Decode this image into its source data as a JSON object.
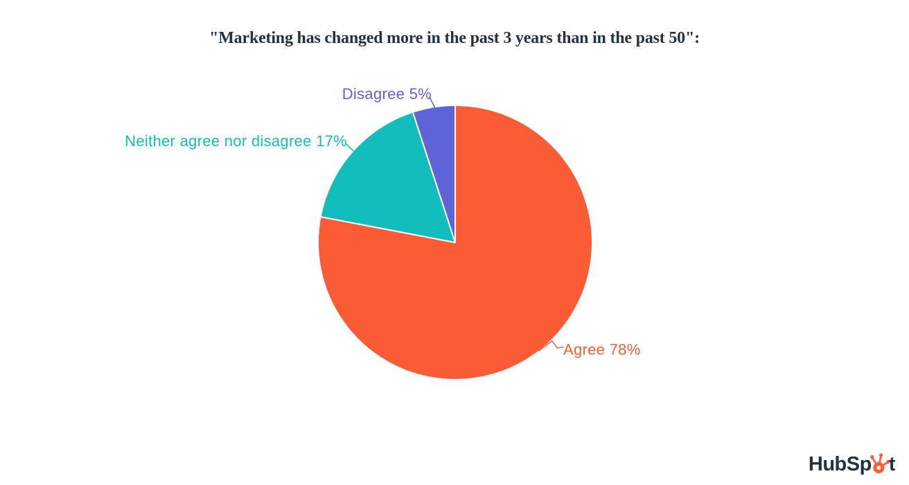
{
  "title": {
    "text": "\"Marketing has changed more in the past 3 years than in the past 50\":",
    "color": "#213343"
  },
  "chart_data": {
    "type": "pie",
    "title": "\"Marketing has changed more in the past 3 years than in the past 50\":",
    "unit": "%",
    "start_angle": "12 o'clock",
    "direction": "clockwise",
    "slice_border_color": "#ffffff",
    "legend_position": "callout-labels",
    "slices": [
      {
        "label": "Agree",
        "value": 78,
        "display_label": "Agree 78%",
        "color": "#FB5C35"
      },
      {
        "label": "Neither agree nor disagree",
        "value": 17,
        "display_label": "Neither agree nor disagree 17%",
        "color": "#12BEBB"
      },
      {
        "label": "Disagree",
        "value": 5,
        "display_label": "Disagree 5%",
        "color": "#5E64D6"
      }
    ]
  },
  "logo": {
    "alt": "HubSpot",
    "text_before": "HubSp",
    "text_after": "t",
    "text_color": "#213343",
    "sprocket_color": "#FF5C35"
  }
}
